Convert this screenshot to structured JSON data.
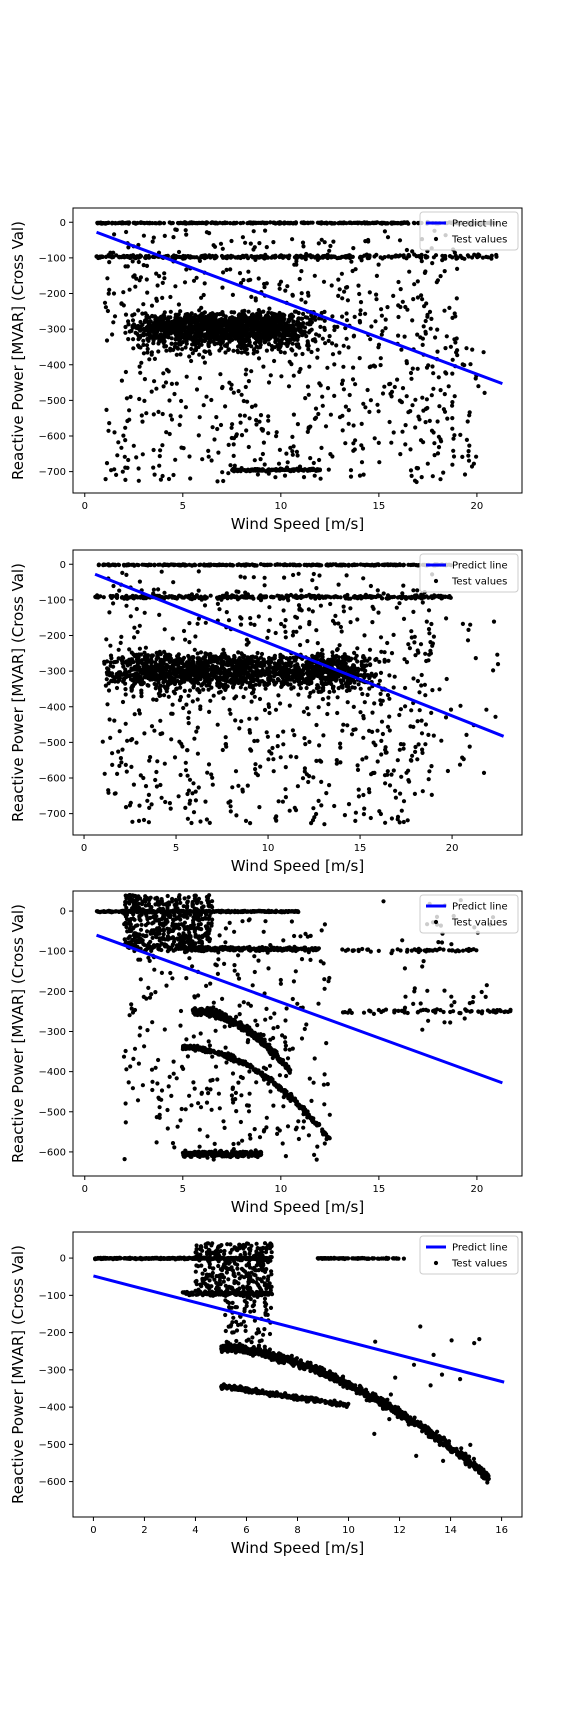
{
  "chart_data": [
    {
      "type": "scatter",
      "xlabel": "Wind Speed [m/s]",
      "ylabel": "Reactive Power [MVAR] (Cross Val)",
      "xlim": [
        -0.6,
        22.3
      ],
      "ylim": [
        -760,
        40
      ],
      "xticks": [
        0,
        5,
        10,
        15,
        20
      ],
      "yticks": [
        0,
        -100,
        -200,
        -300,
        -400,
        -500,
        -600,
        -700
      ],
      "legend": {
        "position": "top-right",
        "entries": [
          "Predict line",
          "Test values"
        ]
      },
      "series": [
        {
          "name": "Predict line",
          "kind": "line",
          "color": "#0000ff",
          "x": [
            0.6,
            21.3
          ],
          "y": [
            -28,
            -453
          ]
        },
        {
          "name": "Test values",
          "kind": "scatter",
          "color": "#000000",
          "clusters": [
            {
              "x": [
                0.6,
                21
              ],
              "y": [
                0,
                0
              ],
              "density": "high"
            },
            {
              "x": [
                0.6,
                14
              ],
              "y": [
                -95,
                -100
              ],
              "density": "high"
            },
            {
              "x": [
                1.5,
                15
              ],
              "y": [
                -240,
                -420
              ],
              "density": "very-high"
            },
            {
              "x": [
                1,
                20
              ],
              "y": [
                -20,
                -730
              ],
              "density": "scattered"
            },
            {
              "x": [
                7.5,
                12
              ],
              "y": [
                -690,
                -700
              ],
              "density": "medium"
            }
          ]
        }
      ]
    },
    {
      "type": "scatter",
      "xlabel": "Wind Speed [m/s]",
      "ylabel": "Reactive Power [MVAR] (Cross Val)",
      "xlim": [
        -0.6,
        23.8
      ],
      "ylim": [
        -760,
        40
      ],
      "xticks": [
        0,
        5,
        10,
        15,
        20
      ],
      "yticks": [
        0,
        -100,
        -200,
        -300,
        -400,
        -500,
        -600,
        -700
      ],
      "legend": {
        "position": "top-right",
        "entries": [
          "Predict line",
          "Test values"
        ]
      },
      "series": [
        {
          "name": "Predict line",
          "kind": "line",
          "color": "#0000ff",
          "x": [
            0.6,
            22.8
          ],
          "y": [
            -28,
            -483
          ]
        },
        {
          "name": "Test values",
          "kind": "scatter",
          "color": "#000000",
          "clusters": [
            {
              "x": [
                0.6,
                20
              ],
              "y": [
                0,
                0
              ],
              "density": "high"
            },
            {
              "x": [
                0.6,
                20
              ],
              "y": [
                -85,
                -100
              ],
              "density": "high"
            },
            {
              "x": [
                1,
                18
              ],
              "y": [
                -240,
                -380
              ],
              "density": "very-high"
            },
            {
              "x": [
                1,
                22
              ],
              "y": [
                -20,
                -730
              ],
              "density": "scattered"
            }
          ]
        }
      ]
    },
    {
      "type": "scatter",
      "xlabel": "Wind Speed [m/s]",
      "ylabel": "Reactive Power [MVAR] (Cross Val)",
      "xlim": [
        -0.6,
        22.3
      ],
      "ylim": [
        -660,
        50
      ],
      "xticks": [
        0,
        5,
        10,
        15,
        20
      ],
      "yticks": [
        0,
        -100,
        -200,
        -300,
        -400,
        -500,
        -600
      ],
      "legend": {
        "position": "top-right",
        "entries": [
          "Predict line",
          "Test values"
        ]
      },
      "series": [
        {
          "name": "Predict line",
          "kind": "line",
          "color": "#0000ff",
          "x": [
            0.6,
            21.3
          ],
          "y": [
            -60,
            -428
          ]
        },
        {
          "name": "Test values",
          "kind": "scatter",
          "color": "#000000",
          "clusters": [
            {
              "x": [
                0.6,
                11
              ],
              "y": [
                0,
                0
              ],
              "density": "high"
            },
            {
              "x": [
                2,
                6
              ],
              "y": [
                0,
                -100
              ],
              "density": "very-high"
            },
            {
              "x": [
                5,
                12
              ],
              "y": [
                -90,
                -100
              ],
              "density": "high"
            },
            {
              "x": [
                5.5,
                10.5
              ],
              "y": [
                -250,
                -400
              ],
              "density": "curve"
            },
            {
              "x": [
                5,
                9
              ],
              "y": [
                -590,
                -620
              ],
              "density": "medium"
            },
            {
              "x": [
                1,
                22
              ],
              "y": [
                40,
                -620
              ],
              "density": "scattered"
            }
          ]
        }
      ]
    },
    {
      "type": "scatter",
      "xlabel": "Wind Speed [m/s]",
      "ylabel": "Reactive Power [MVAR] (Cross Val)",
      "xlim": [
        -0.8,
        16.8
      ],
      "ylim": [
        -695,
        70
      ],
      "xticks": [
        0,
        2,
        4,
        6,
        8,
        10,
        12,
        14,
        16
      ],
      "yticks": [
        0,
        -100,
        -200,
        -300,
        -400,
        -500,
        -600
      ],
      "legend": {
        "position": "top-right",
        "entries": [
          "Predict line",
          "Test values"
        ]
      },
      "series": [
        {
          "name": "Predict line",
          "kind": "line",
          "color": "#0000ff",
          "x": [
            0,
            16.1
          ],
          "y": [
            -48,
            -333
          ]
        },
        {
          "name": "Test values",
          "kind": "scatter",
          "color": "#000000",
          "clusters": [
            {
              "x": [
                0,
                6.8
              ],
              "y": [
                0,
                0
              ],
              "density": "high"
            },
            {
              "x": [
                8.7,
                12.2
              ],
              "y": [
                0,
                0
              ],
              "density": "medium"
            },
            {
              "x": [
                4,
                7
              ],
              "y": [
                40,
                -100
              ],
              "density": "high"
            },
            {
              "x": [
                5,
                15.5
              ],
              "y": [
                -240,
                -590
              ],
              "density": "curve"
            },
            {
              "x": [
                5,
                10
              ],
              "y": [
                -340,
                -400
              ],
              "density": "curve"
            }
          ]
        }
      ]
    }
  ]
}
